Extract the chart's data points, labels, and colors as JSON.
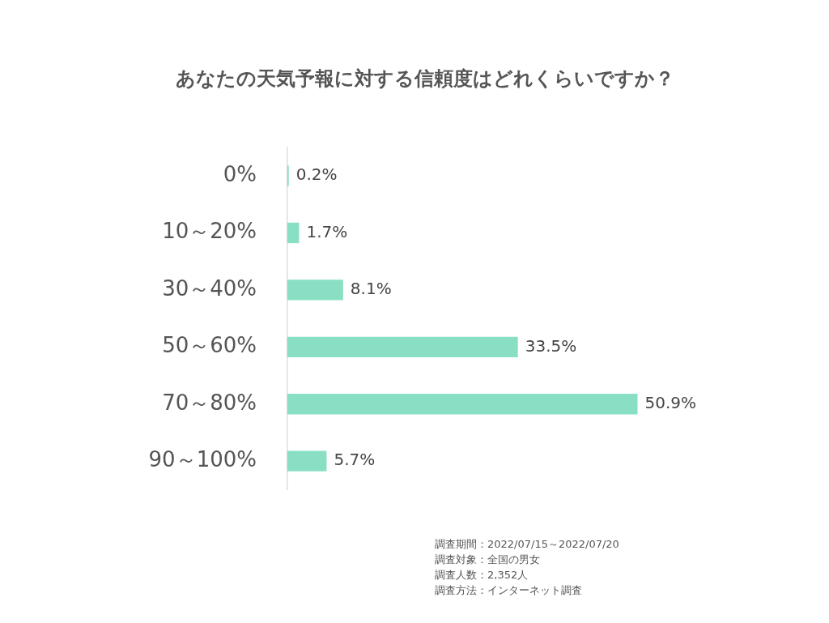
{
  "chart_data": {
    "type": "bar",
    "orientation": "horizontal",
    "title": "あなたの天気予報に対する信頼度はどれくらいですか？",
    "categories": [
      "0%",
      "10～20%",
      "30～40%",
      "50～60%",
      "70～80%",
      "90～100%"
    ],
    "values": [
      0.2,
      1.7,
      8.1,
      33.5,
      50.9,
      5.7
    ],
    "value_labels": [
      "0.2%",
      "1.7%",
      "8.1%",
      "33.5%",
      "50.9%",
      "5.7%"
    ],
    "color": "#88dfc3",
    "annotations": [
      "調査期間：2022/07/15～2022/07/20",
      "調査対象：全国の男女",
      "調査人数：2,352人",
      "調査方法：インターネット調査"
    ]
  }
}
